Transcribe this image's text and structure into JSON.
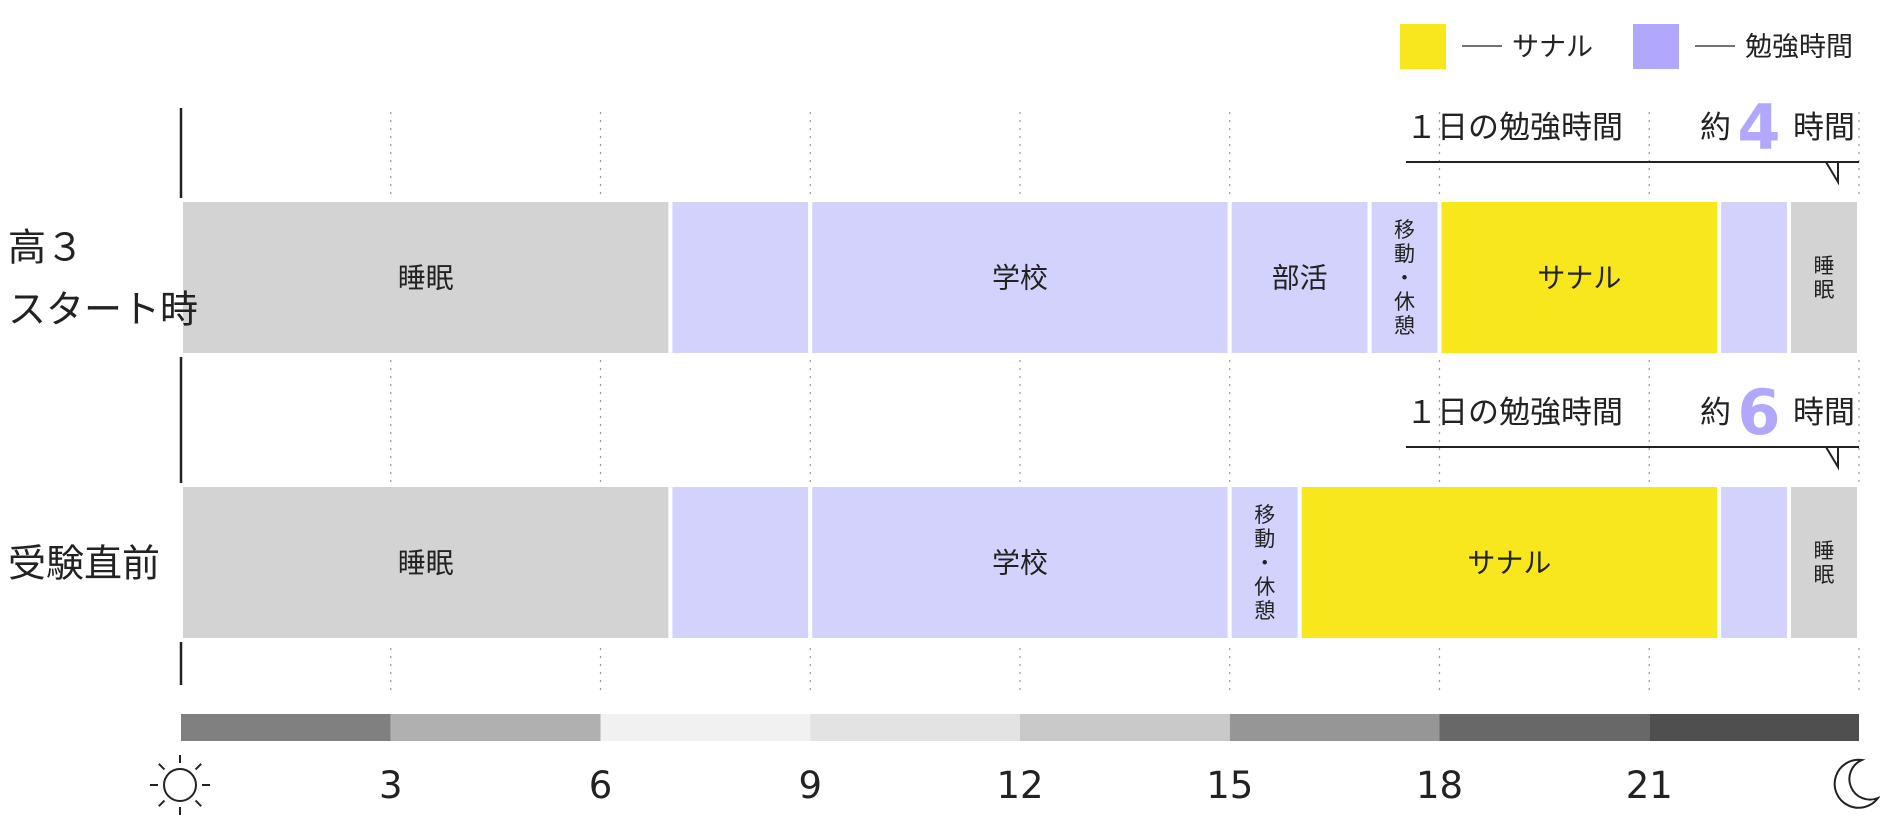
{
  "chart_data": {
    "type": "bar",
    "orientation": "horizontal-timeline",
    "x_unit": "hour",
    "xlim": [
      0,
      24
    ],
    "x_ticks": [
      "3",
      "6",
      "9",
      "12",
      "15",
      "18",
      "21"
    ],
    "x_tick_values": [
      3,
      6,
      9,
      12,
      15,
      18,
      21
    ],
    "start_icon": "sun-icon",
    "end_icon": "moon-icon",
    "legend": {
      "placement": "top-right",
      "items": [
        {
          "label": "サナル",
          "color": "#f9e71e"
        },
        {
          "label": "勉強時間",
          "color": "#b1a8fb"
        }
      ]
    },
    "daylight_band": [
      {
        "start": 0,
        "end": 3,
        "color": "#808080"
      },
      {
        "start": 3,
        "end": 6,
        "color": "#b0b0b0"
      },
      {
        "start": 6,
        "end": 9,
        "color": "#f1f1f1"
      },
      {
        "start": 9,
        "end": 12,
        "color": "#e3e3e3"
      },
      {
        "start": 12,
        "end": 15,
        "color": "#c9c9c9"
      },
      {
        "start": 15,
        "end": 18,
        "color": "#969696"
      },
      {
        "start": 18,
        "end": 21,
        "color": "#686868"
      },
      {
        "start": 21,
        "end": 24,
        "color": "#4f4f4f"
      }
    ],
    "rows": [
      {
        "label_lines": [
          "高３",
          "スタート時"
        ],
        "study_note": {
          "prefix": "１日の勉強時間",
          "approx": "約",
          "value": "4",
          "unit": "時間"
        },
        "segments": [
          {
            "start": 0,
            "end": 7,
            "label": "睡眠",
            "kind": "sleep"
          },
          {
            "start": 7,
            "end": 9,
            "label": "",
            "kind": "study"
          },
          {
            "start": 9,
            "end": 15,
            "label": "学校",
            "kind": "study"
          },
          {
            "start": 15,
            "end": 17,
            "label": "部活",
            "kind": "study"
          },
          {
            "start": 17,
            "end": 18,
            "label": "移動・休憩",
            "kind": "study",
            "vertical": true
          },
          {
            "start": 18,
            "end": 22,
            "label": "サナル",
            "kind": "sanaru"
          },
          {
            "start": 22,
            "end": 23,
            "label": "",
            "kind": "study"
          },
          {
            "start": 23,
            "end": 24,
            "label": "睡眠",
            "kind": "sleep",
            "vertical": true
          }
        ]
      },
      {
        "label_lines": [
          "受験直前"
        ],
        "study_note": {
          "prefix": "１日の勉強時間",
          "approx": "約",
          "value": "6",
          "unit": "時間"
        },
        "segments": [
          {
            "start": 0,
            "end": 7,
            "label": "睡眠",
            "kind": "sleep"
          },
          {
            "start": 7,
            "end": 9,
            "label": "",
            "kind": "study"
          },
          {
            "start": 9,
            "end": 15,
            "label": "学校",
            "kind": "study"
          },
          {
            "start": 15,
            "end": 16,
            "label": "移動・休憩",
            "kind": "study",
            "vertical": true
          },
          {
            "start": 16,
            "end": 22,
            "label": "サナル",
            "kind": "sanaru"
          },
          {
            "start": 22,
            "end": 23,
            "label": "",
            "kind": "study"
          },
          {
            "start": 23,
            "end": 24,
            "label": "睡眠",
            "kind": "sleep",
            "vertical": true
          }
        ]
      }
    ]
  },
  "colors": {
    "sleep": "#d3d3d3",
    "study": "#d3d2fc",
    "sanaru": "#f9e71e",
    "accent_number": "#b1a8fb",
    "axis": "#222222",
    "gridline": "#999999"
  }
}
